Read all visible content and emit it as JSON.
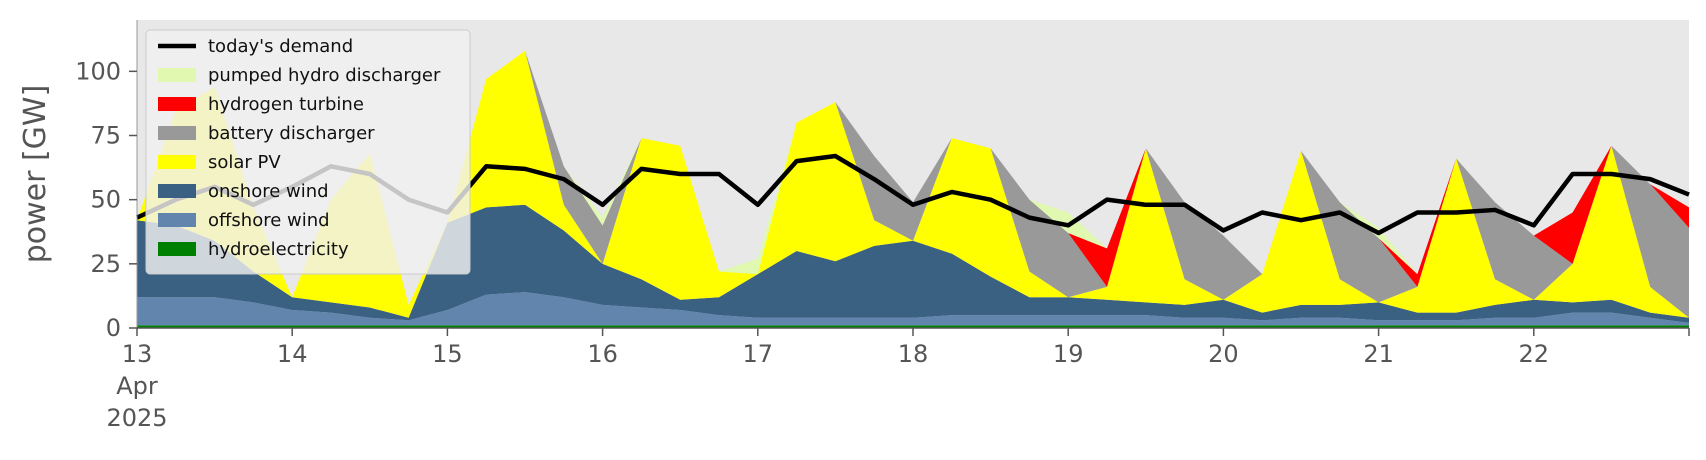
{
  "chart_data": {
    "type": "area",
    "title": "",
    "xlabel": "",
    "ylabel": "power [GW]",
    "ylim": [
      0,
      120
    ],
    "xlim": [
      "2025-04-13T00:00",
      "2025-04-23T00:00"
    ],
    "yticks": [
      0,
      25,
      50,
      75,
      100
    ],
    "xtick_labels": [
      {
        "date": "2025-04-13",
        "lines": [
          "13",
          "Apr",
          "2025"
        ]
      },
      {
        "date": "2025-04-14",
        "lines": [
          "14"
        ]
      },
      {
        "date": "2025-04-15",
        "lines": [
          "15"
        ]
      },
      {
        "date": "2025-04-16",
        "lines": [
          "16"
        ]
      },
      {
        "date": "2025-04-17",
        "lines": [
          "17"
        ]
      },
      {
        "date": "2025-04-18",
        "lines": [
          "18"
        ]
      },
      {
        "date": "2025-04-19",
        "lines": [
          "19"
        ]
      },
      {
        "date": "2025-04-20",
        "lines": [
          "20"
        ]
      },
      {
        "date": "2025-04-21",
        "lines": [
          "21"
        ]
      },
      {
        "date": "2025-04-22",
        "lines": [
          "22"
        ]
      }
    ],
    "grid": false,
    "legend_position": "top-left",
    "background": "#e8e8e8",
    "x": [
      "2025-04-13T00:00",
      "2025-04-13T06:00",
      "2025-04-13T12:00",
      "2025-04-13T18:00",
      "2025-04-14T00:00",
      "2025-04-14T06:00",
      "2025-04-14T12:00",
      "2025-04-14T18:00",
      "2025-04-15T00:00",
      "2025-04-15T06:00",
      "2025-04-15T12:00",
      "2025-04-15T18:00",
      "2025-04-16T00:00",
      "2025-04-16T06:00",
      "2025-04-16T12:00",
      "2025-04-16T18:00",
      "2025-04-17T00:00",
      "2025-04-17T06:00",
      "2025-04-17T12:00",
      "2025-04-17T18:00",
      "2025-04-18T00:00",
      "2025-04-18T06:00",
      "2025-04-18T12:00",
      "2025-04-18T18:00",
      "2025-04-19T00:00",
      "2025-04-19T06:00",
      "2025-04-19T12:00",
      "2025-04-19T18:00",
      "2025-04-20T00:00",
      "2025-04-20T06:00",
      "2025-04-20T12:00",
      "2025-04-20T18:00",
      "2025-04-21T00:00",
      "2025-04-21T06:00",
      "2025-04-21T12:00",
      "2025-04-21T18:00",
      "2025-04-22T00:00",
      "2025-04-22T06:00",
      "2025-04-22T12:00",
      "2025-04-22T18:00",
      "2025-04-23T00:00"
    ],
    "series": [
      {
        "name": "hydroelectricity",
        "color": "#008000",
        "values": [
          1,
          1,
          1,
          1,
          1,
          1,
          1,
          1,
          1,
          1,
          1,
          1,
          1,
          1,
          1,
          1,
          1,
          1,
          1,
          1,
          1,
          1,
          1,
          1,
          1,
          1,
          1,
          1,
          1,
          1,
          1,
          1,
          1,
          1,
          1,
          1,
          1,
          1,
          1,
          1,
          1
        ]
      },
      {
        "name": "offshore wind",
        "color": "#6185ac",
        "values": [
          11,
          11,
          11,
          9,
          6,
          5,
          3,
          2,
          6,
          12,
          13,
          11,
          8,
          7,
          6,
          4,
          3,
          3,
          3,
          3,
          3,
          4,
          4,
          4,
          4,
          4,
          4,
          3,
          3,
          2,
          3,
          3,
          2,
          2,
          2,
          3,
          3,
          5,
          5,
          3,
          1
        ]
      },
      {
        "name": "onshore wind",
        "color": "#3a6082",
        "values": [
          30,
          28,
          22,
          12,
          5,
          4,
          4,
          1,
          34,
          34,
          34,
          26,
          16,
          11,
          4,
          7,
          17,
          26,
          22,
          28,
          30,
          24,
          15,
          7,
          7,
          6,
          5,
          5,
          7,
          3,
          5,
          5,
          7,
          3,
          3,
          5,
          7,
          4,
          5,
          2,
          2
        ]
      },
      {
        "name": "solar PV",
        "color": "#ffff00",
        "values": [
          0,
          45,
          60,
          25,
          0,
          40,
          60,
          5,
          0,
          50,
          60,
          10,
          0,
          55,
          60,
          10,
          0,
          50,
          62,
          10,
          0,
          45,
          50,
          10,
          0,
          5,
          60,
          10,
          0,
          15,
          60,
          10,
          0,
          10,
          60,
          10,
          0,
          15,
          60,
          10,
          0
        ]
      },
      {
        "name": "battery discharger",
        "color": "#999999",
        "values": [
          0,
          0,
          0,
          0,
          0,
          0,
          0,
          0,
          0,
          0,
          0,
          15,
          15,
          0,
          0,
          0,
          0,
          0,
          0,
          25,
          15,
          0,
          0,
          28,
          25,
          0,
          0,
          30,
          25,
          0,
          0,
          30,
          25,
          0,
          0,
          30,
          25,
          0,
          0,
          40,
          35
        ]
      },
      {
        "name": "hydrogen turbine",
        "color": "#ff0000",
        "values": [
          0,
          0,
          0,
          0,
          0,
          0,
          0,
          0,
          0,
          0,
          0,
          0,
          0,
          0,
          0,
          0,
          0,
          0,
          0,
          0,
          0,
          0,
          0,
          0,
          0,
          15,
          0,
          0,
          0,
          0,
          0,
          0,
          0,
          5,
          0,
          0,
          0,
          20,
          0,
          0,
          8
        ]
      },
      {
        "name": "pumped hydro discharger",
        "color": "#e0f8b0",
        "values": [
          0,
          0,
          0,
          0,
          0,
          0,
          0,
          0,
          0,
          0,
          0,
          0,
          3,
          0,
          0,
          0,
          6,
          0,
          0,
          0,
          0,
          0,
          0,
          0,
          8,
          0,
          0,
          0,
          0,
          0,
          0,
          0,
          4,
          0,
          0,
          0,
          0,
          0,
          0,
          0,
          0
        ]
      }
    ],
    "demand": {
      "name": "today's demand",
      "color": "#000000",
      "values": [
        43,
        50,
        55,
        48,
        55,
        63,
        60,
        50,
        45,
        63,
        62,
        58,
        48,
        62,
        60,
        60,
        48,
        65,
        67,
        58,
        48,
        53,
        50,
        43,
        40,
        50,
        48,
        48,
        38,
        45,
        42,
        45,
        37,
        45,
        45,
        46,
        40,
        60,
        60,
        58,
        52
      ]
    },
    "legend_entries": [
      "today's demand",
      "pumped hydro discharger",
      "hydrogen turbine",
      "battery discharger",
      "solar PV",
      "onshore wind",
      "offshore wind",
      "hydroelectricity"
    ]
  }
}
